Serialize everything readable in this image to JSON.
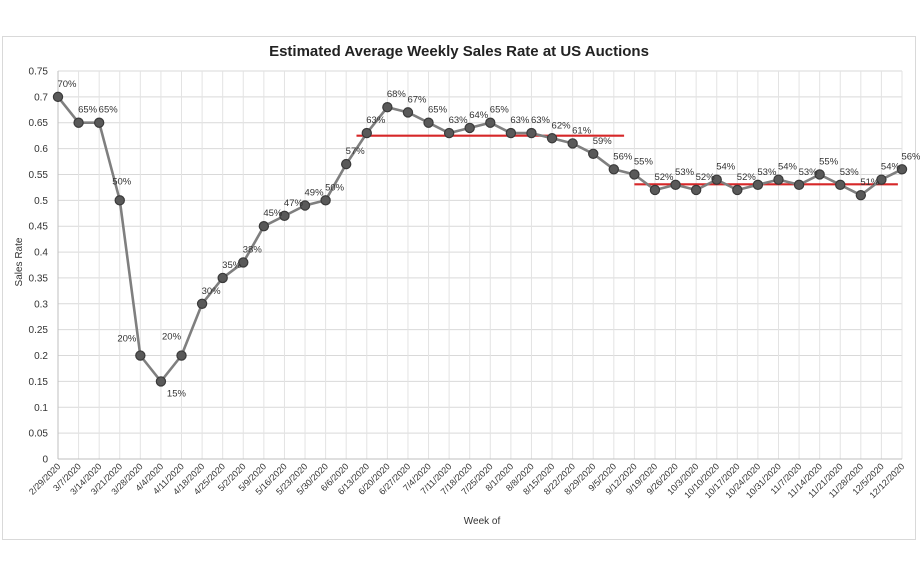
{
  "chart_data": {
    "type": "line",
    "title": "Estimated Average Weekly Sales Rate at US Auctions",
    "xlabel": "Week of",
    "ylabel": "Sales Rate",
    "ylim": [
      0,
      0.75
    ],
    "yticks": [
      "0",
      "0.05",
      "0.1",
      "0.15",
      "0.2",
      "0.25",
      "0.3",
      "0.35",
      "0.4",
      "0.45",
      "0.5",
      "0.55",
      "0.6",
      "0.65",
      "0.7",
      "0.75"
    ],
    "grid": true,
    "categories": [
      "2/29/2020",
      "3/7/2020",
      "3/14/2020",
      "3/21/2020",
      "3/28/2020",
      "4/4/2020",
      "4/11/2020",
      "4/18/2020",
      "4/25/2020",
      "5/2/2020",
      "5/9/2020",
      "5/16/2020",
      "5/23/2020",
      "5/30/2020",
      "6/6/2020",
      "6/13/2020",
      "6/20/2020",
      "6/27/2020",
      "7/4/2020",
      "7/11/2020",
      "7/18/2020",
      "7/25/2020",
      "8/1/2020",
      "8/8/2020",
      "8/15/2020",
      "8/22/2020",
      "8/29/2020",
      "9/5/2020",
      "9/12/2020",
      "9/19/2020",
      "9/26/2020",
      "10/3/2020",
      "10/10/2020",
      "10/17/2020",
      "10/24/2020",
      "10/31/2020",
      "11/7/2020",
      "11/14/2020",
      "11/21/2020",
      "11/28/2020",
      "12/5/2020",
      "12/12/2020"
    ],
    "values": [
      0.7,
      0.65,
      0.65,
      0.5,
      0.2,
      0.15,
      0.2,
      0.3,
      0.35,
      0.38,
      0.45,
      0.47,
      0.49,
      0.5,
      0.57,
      0.63,
      0.68,
      0.67,
      0.65,
      0.63,
      0.64,
      0.65,
      0.63,
      0.63,
      0.62,
      0.61,
      0.59,
      0.56,
      0.55,
      0.52,
      0.53,
      0.52,
      0.54,
      0.52,
      0.53,
      0.54,
      0.53,
      0.55,
      0.53,
      0.51,
      0.54,
      0.56
    ],
    "data_labels": [
      "70%",
      "65%",
      "65%",
      "50%",
      "20%",
      "15%",
      "20%",
      "30%",
      "35%",
      "38%",
      "45%",
      "47%",
      "49%",
      "50%",
      "57%",
      "63%",
      "68%",
      "67%",
      "65%",
      "63%",
      "64%",
      "65%",
      "63%",
      "63%",
      "62%",
      "61%",
      "59%",
      "56%",
      "55%",
      "52%",
      "53%",
      "52%",
      "54%",
      "52%",
      "53%",
      "54%",
      "53%",
      "55%",
      "53%",
      "51%",
      "54%",
      "56%"
    ],
    "reference_lines": [
      {
        "name": "summer-average",
        "y": 0.625,
        "from_index": 14.5,
        "to_index": 27.5,
        "color": "#d62728"
      },
      {
        "name": "fall-average",
        "y": 0.531,
        "from_index": 28.0,
        "to_index": 40.8,
        "color": "#d62728"
      }
    ],
    "series_style": {
      "line_color": "#7f7f7f",
      "marker_fill": "#595959",
      "marker_edge": "#3a3a3a"
    }
  }
}
